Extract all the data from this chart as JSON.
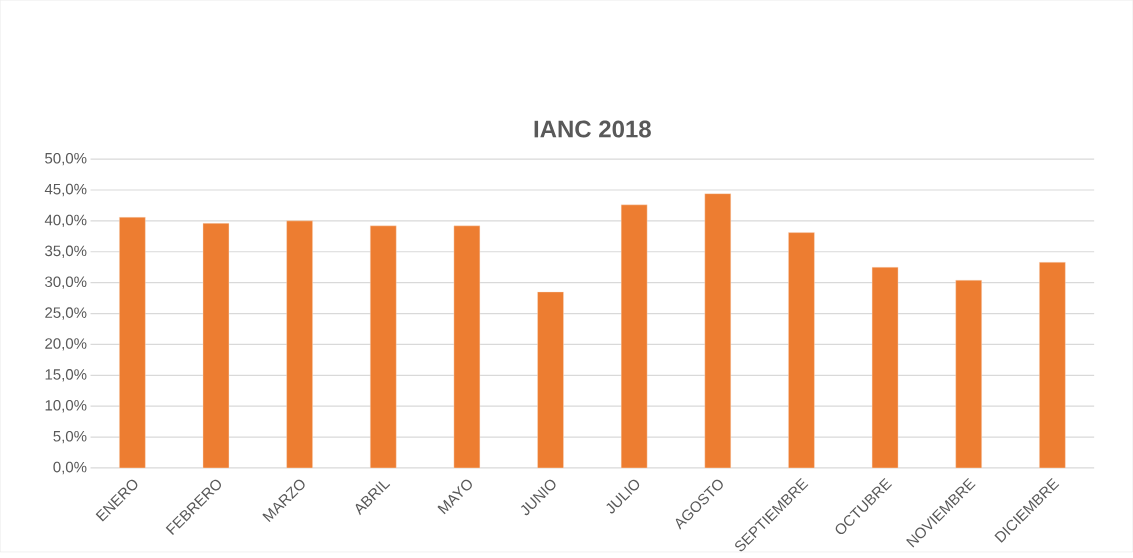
{
  "chart_data": {
    "type": "bar",
    "title": "IANC 2018",
    "categories": [
      "ENERO",
      "FEBRERO",
      "MARZO",
      "ABRIL",
      "MAYO",
      "JUNIO",
      "JULIO",
      "AGOSTO",
      "SEPTIEMBRE",
      "OCTUBRE",
      "NOVIEMBRE",
      "DICIEMBRE"
    ],
    "values": [
      40.6,
      39.6,
      40.0,
      39.2,
      39.2,
      28.5,
      42.6,
      44.4,
      38.1,
      32.5,
      30.4,
      33.3
    ],
    "color": "#ed7d31",
    "ylim": [
      0,
      50
    ],
    "yticks": [
      {
        "value": 0,
        "label": "0,0%"
      },
      {
        "value": 5,
        "label": "5,0%"
      },
      {
        "value": 10,
        "label": "10,0%"
      },
      {
        "value": 15,
        "label": "15,0%"
      },
      {
        "value": 20,
        "label": "20,0%"
      },
      {
        "value": 25,
        "label": "25,0%"
      },
      {
        "value": 30,
        "label": "30,0%"
      },
      {
        "value": 35,
        "label": "35,0%"
      },
      {
        "value": 40,
        "label": "40,0%"
      },
      {
        "value": 45,
        "label": "45,0%"
      },
      {
        "value": 50,
        "label": "50,0%"
      }
    ],
    "grid": "y"
  }
}
